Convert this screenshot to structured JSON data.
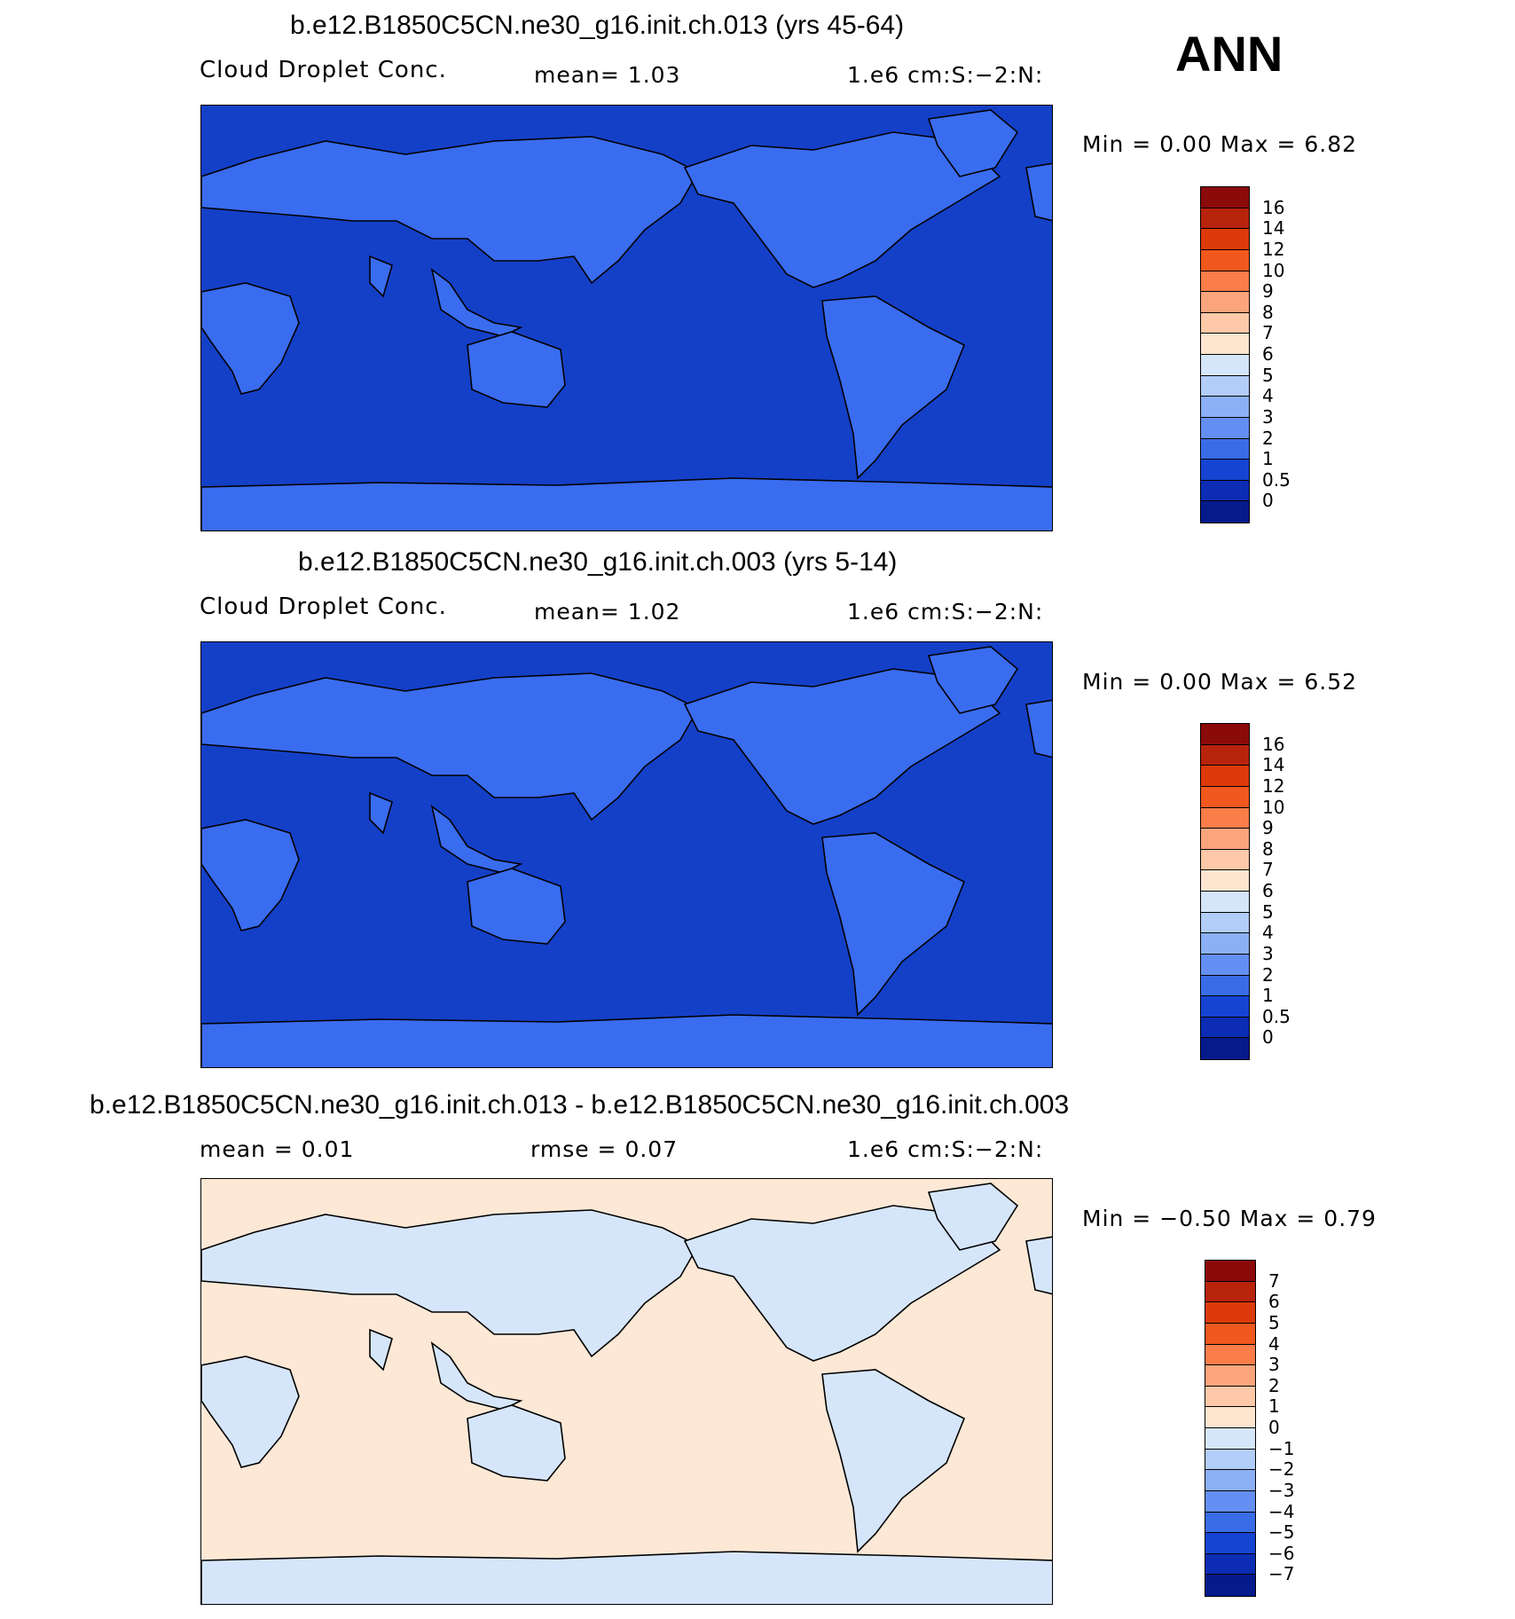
{
  "season": "ANN",
  "panels": [
    {
      "title": "b.e12.B1850C5CN.ne30_g16.init.ch.013 (yrs 45-64)",
      "variable": "Cloud Droplet Conc.",
      "stat1": "mean=    1.03",
      "units": "1.e6 cm:S:−2:N:",
      "minmax": "Min =     0.00  Max =     6.82",
      "ocean_color": "#1440c8",
      "land_color": "#3a6cf0",
      "colorbar": {
        "labels": [
          "16",
          "14",
          "12",
          "10",
          "9",
          "8",
          "7",
          "6",
          "5",
          "4",
          "3",
          "2",
          "1",
          "0.5",
          "0"
        ],
        "colors": [
          "#8b0a0a",
          "#b8230c",
          "#dc3a0a",
          "#f0581e",
          "#fb7d48",
          "#fca57d",
          "#fdc9a8",
          "#fde5d0",
          "#d6e6fa",
          "#b2cdf8",
          "#8cb0f5",
          "#648ff2",
          "#3a6ce8",
          "#1644d2",
          "#0c2cb4",
          "#061a8c"
        ]
      }
    },
    {
      "title": "b.e12.B1850C5CN.ne30_g16.init.ch.003 (yrs 5-14)",
      "variable": "Cloud Droplet Conc.",
      "stat1": "mean=    1.02",
      "units": "1.e6 cm:S:−2:N:",
      "minmax": "Min =     0.00  Max =     6.52",
      "ocean_color": "#1440c8",
      "land_color": "#3a6cf0",
      "colorbar": {
        "labels": [
          "16",
          "14",
          "12",
          "10",
          "9",
          "8",
          "7",
          "6",
          "5",
          "4",
          "3",
          "2",
          "1",
          "0.5",
          "0"
        ],
        "colors": [
          "#8b0a0a",
          "#b8230c",
          "#dc3a0a",
          "#f0581e",
          "#fb7d48",
          "#fca57d",
          "#fdc9a8",
          "#fde5d0",
          "#d6e6fa",
          "#b2cdf8",
          "#8cb0f5",
          "#648ff2",
          "#3a6ce8",
          "#1644d2",
          "#0c2cb4",
          "#061a8c"
        ]
      }
    },
    {
      "title": "b.e12.B1850C5CN.ne30_g16.init.ch.013 - b.e12.B1850C5CN.ne30_g16.init.ch.003",
      "stat0": "mean =     0.01",
      "stat1": "rmse =     0.07",
      "units": "1.e6 cm:S:−2:N:",
      "minmax": "Min =   −0.50  Max =     0.79",
      "ocean_color": "#fde8d6",
      "land_color": "#d6e6fa",
      "colorbar": {
        "labels": [
          "7",
          "6",
          "5",
          "4",
          "3",
          "2",
          "1",
          "0",
          "−1",
          "−2",
          "−3",
          "−4",
          "−5",
          "−6",
          "−7"
        ],
        "colors": [
          "#8b0a0a",
          "#b8230c",
          "#dc3a0a",
          "#f0581e",
          "#fb7d48",
          "#fca57d",
          "#fdc9a8",
          "#fde5d0",
          "#d6e6fa",
          "#b2cdf8",
          "#8cb0f5",
          "#648ff2",
          "#3a6ce8",
          "#1644d2",
          "#0c2cb4",
          "#061a8c"
        ]
      }
    }
  ]
}
